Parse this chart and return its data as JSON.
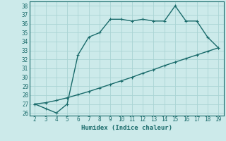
{
  "x_top": [
    2,
    3,
    4,
    5,
    6,
    7,
    8,
    9,
    10,
    11,
    12,
    13,
    14,
    15,
    16,
    17,
    18,
    19
  ],
  "y_top": [
    27,
    26.5,
    26,
    27,
    32.5,
    34.5,
    35,
    36.5,
    36.5,
    36.3,
    36.5,
    36.3,
    36.3,
    38,
    36.3,
    36.3,
    34.5,
    33.3
  ],
  "x_bot": [
    2,
    3,
    4,
    5,
    6,
    7,
    8,
    9,
    10,
    11,
    12,
    13,
    14,
    15,
    16,
    17,
    18,
    19
  ],
  "y_bot": [
    27,
    27.15,
    27.4,
    27.7,
    28.05,
    28.4,
    28.8,
    29.2,
    29.6,
    30.0,
    30.45,
    30.85,
    31.3,
    31.7,
    32.1,
    32.5,
    32.9,
    33.3
  ],
  "line_color": "#1a6b6b",
  "bg_color": "#cceaea",
  "grid_color": "#aad4d4",
  "xlabel": "Humidex (Indice chaleur)",
  "xlim": [
    2,
    19
  ],
  "ylim": [
    26,
    38
  ],
  "yticks": [
    26,
    27,
    28,
    29,
    30,
    31,
    32,
    33,
    34,
    35,
    36,
    37,
    38
  ],
  "xticks": [
    2,
    3,
    4,
    5,
    6,
    7,
    8,
    9,
    10,
    11,
    12,
    13,
    14,
    15,
    16,
    17,
    18,
    19
  ],
  "markersize": 2.5,
  "linewidth": 1.0
}
